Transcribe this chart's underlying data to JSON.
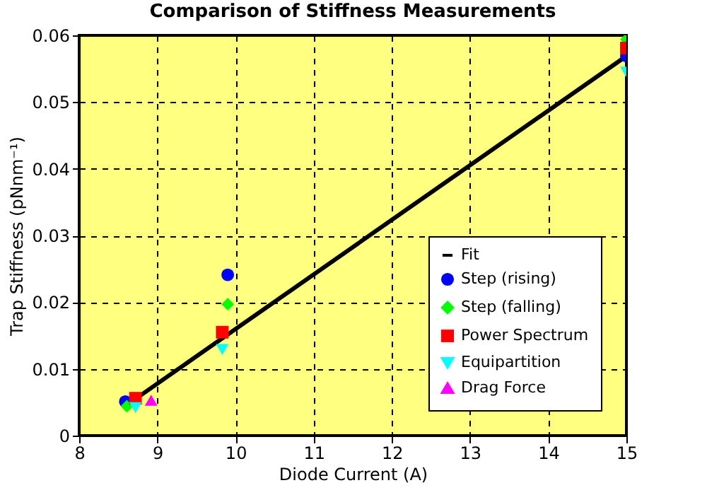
{
  "chart_data": {
    "type": "scatter",
    "title": "Comparison of Stiffness Measurements",
    "xlabel": "Diode Current (A)",
    "ylabel": "Trap Stiffness (pNnm⁻¹)",
    "xlim": [
      8,
      15
    ],
    "xticks": [
      8,
      9,
      10,
      11,
      12,
      13,
      14,
      15
    ],
    "ylim": [
      0,
      0.06
    ],
    "yticks": [
      0,
      0.01,
      0.02,
      0.03,
      0.04,
      0.05,
      0.06
    ],
    "grid": true,
    "legend": "bottom right",
    "series": [
      {
        "name": "Fit",
        "type": "line",
        "color": "#000000",
        "x": [
          8.72,
          15
        ],
        "values": [
          0.0055,
          0.0569
        ]
      },
      {
        "name": "Step (rising)",
        "color": "#0000ff",
        "marker": "circle",
        "x": [
          8.59,
          9.9,
          15
        ],
        "values": [
          0.0051,
          0.0241,
          0.0569
        ]
      },
      {
        "name": "Step (falling)",
        "color": "#00ff00",
        "marker": "diamond",
        "x": [
          8.61,
          9.9,
          15
        ],
        "values": [
          0.0044,
          0.0197,
          0.0594
        ]
      },
      {
        "name": "Power Spectrum",
        "color": "#ff0000",
        "marker": "square",
        "x": [
          8.72,
          9.83,
          15
        ],
        "values": [
          0.0056,
          0.0155,
          0.0581
        ]
      },
      {
        "name": "Equipartition",
        "color": "#00ffff",
        "marker": "triangle-down",
        "x": [
          8.72,
          9.83,
          15
        ],
        "values": [
          0.0042,
          0.0129,
          0.0545
        ]
      },
      {
        "name": "Drag Force",
        "color": "#ff00ff",
        "marker": "triangle-up",
        "x": [
          8.92
        ],
        "values": [
          0.0053
        ]
      }
    ]
  }
}
